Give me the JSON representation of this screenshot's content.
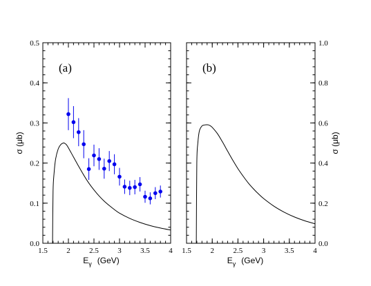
{
  "chart_data": [
    {
      "type": "line",
      "panel_label": "(a)",
      "xlabel": "E",
      "xlabel_sub": "γ",
      "xlabel_unit": "(GeV)",
      "ylabel": "σ  (μb)",
      "xlim": [
        1.5,
        4.0
      ],
      "ylim": [
        0.0,
        0.5
      ],
      "y_axis_side": "left",
      "grid": false,
      "x_ticks": [
        "1.5",
        "2",
        "2.5",
        "3",
        "3.5",
        "4"
      ],
      "x_tick_values": [
        1.5,
        2.0,
        2.5,
        3.0,
        3.5,
        4.0
      ],
      "y_ticks": [
        "0.0",
        "0.1",
        "0.2",
        "0.3",
        "0.4",
        "0.5"
      ],
      "y_tick_values": [
        0.0,
        0.1,
        0.2,
        0.3,
        0.4,
        0.5
      ],
      "series": [
        {
          "kind": "curve",
          "color": "#000000",
          "x": [
            1.69,
            1.7,
            1.72,
            1.75,
            1.8,
            1.85,
            1.9,
            1.93,
            1.96,
            2.0,
            2.1,
            2.2,
            2.3,
            2.4,
            2.5,
            2.6,
            2.7,
            2.8,
            2.9,
            3.0,
            3.2,
            3.4,
            3.6,
            3.8,
            4.0
          ],
          "y": [
            0.0,
            0.13,
            0.175,
            0.21,
            0.235,
            0.246,
            0.25,
            0.249,
            0.246,
            0.238,
            0.215,
            0.192,
            0.17,
            0.15,
            0.133,
            0.118,
            0.105,
            0.094,
            0.084,
            0.075,
            0.062,
            0.052,
            0.044,
            0.038,
            0.033
          ]
        },
        {
          "kind": "points",
          "color": "#0000ee",
          "x": [
            2.0,
            2.1,
            2.2,
            2.3,
            2.4,
            2.5,
            2.6,
            2.7,
            2.8,
            2.9,
            3.0,
            3.1,
            3.2,
            3.3,
            3.4,
            3.5,
            3.6,
            3.7,
            3.8
          ],
          "y": [
            0.322,
            0.302,
            0.277,
            0.247,
            0.185,
            0.219,
            0.21,
            0.186,
            0.205,
            0.197,
            0.166,
            0.141,
            0.138,
            0.14,
            0.147,
            0.116,
            0.112,
            0.125,
            0.129
          ],
          "err": [
            0.04,
            0.04,
            0.035,
            0.035,
            0.027,
            0.027,
            0.027,
            0.025,
            0.025,
            0.025,
            0.022,
            0.018,
            0.018,
            0.018,
            0.018,
            0.015,
            0.015,
            0.015,
            0.015
          ]
        }
      ]
    },
    {
      "type": "line",
      "panel_label": "(b)",
      "xlabel": "E",
      "xlabel_sub": "γ",
      "xlabel_unit": "(GeV)",
      "ylabel": "σ  (μb)",
      "xlim": [
        1.5,
        4.0
      ],
      "ylim": [
        0.0,
        1.0
      ],
      "y_axis_side": "right",
      "grid": false,
      "x_ticks": [
        "1.5",
        "2",
        "2.5",
        "3",
        "3.5",
        "4"
      ],
      "x_tick_values": [
        1.5,
        2.0,
        2.5,
        3.0,
        3.5,
        4.0
      ],
      "y_ticks": [
        "0.0",
        "0.2",
        "0.4",
        "0.6",
        "0.8",
        "1.0"
      ],
      "y_tick_values": [
        0.0,
        0.2,
        0.4,
        0.6,
        0.8,
        1.0
      ],
      "series": [
        {
          "kind": "curve",
          "color": "#000000",
          "x": [
            1.69,
            1.7,
            1.72,
            1.75,
            1.8,
            1.85,
            1.9,
            1.93,
            1.96,
            2.0,
            2.1,
            2.2,
            2.3,
            2.4,
            2.5,
            2.6,
            2.7,
            2.8,
            2.9,
            3.0,
            3.2,
            3.4,
            3.6,
            3.8,
            4.0
          ],
          "y": [
            0.0,
            0.4,
            0.5,
            0.56,
            0.585,
            0.59,
            0.591,
            0.59,
            0.586,
            0.578,
            0.547,
            0.505,
            0.459,
            0.414,
            0.372,
            0.335,
            0.301,
            0.272,
            0.246,
            0.223,
            0.185,
            0.155,
            0.131,
            0.112,
            0.097
          ]
        }
      ]
    }
  ]
}
